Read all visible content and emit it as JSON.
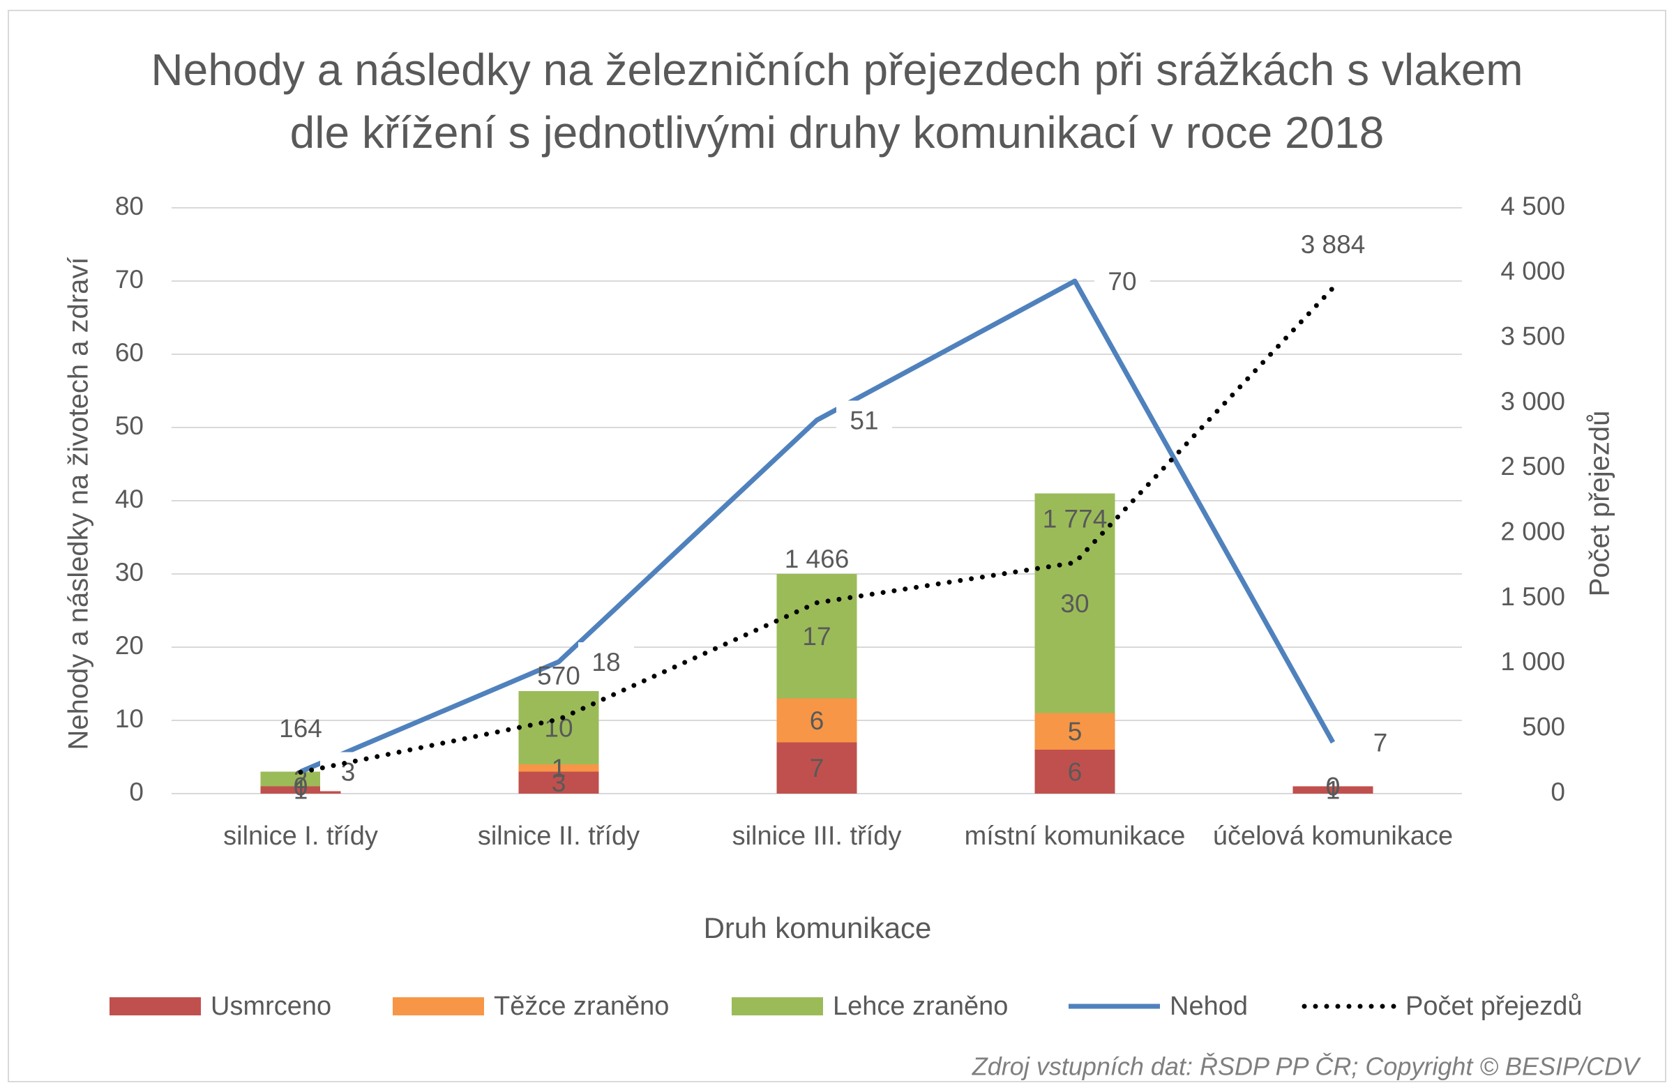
{
  "chart_data": {
    "type": "bar",
    "stacked": true,
    "title": "Nehody a následky na železničních přejezdech při srážkách s vlakem dle křížení s jednotlivými druhy komunikací v roce 2018",
    "x_label": "Druh komunikace",
    "y_label": "Nehody a následky na životech a zdraví",
    "y2_label": "Počet přejezdů",
    "source": "Zdroj vstupních dat: ŘSDP PP ČR; Copyright © BESIP/CDV",
    "categories": [
      "silnice I. třídy",
      "silnice II. třídy",
      "silnice III. třídy",
      "místní komunikace",
      "účelová komunikace"
    ],
    "ylim": [
      0,
      80
    ],
    "yticks": [
      0,
      10,
      20,
      30,
      40,
      50,
      60,
      70,
      80
    ],
    "y2lim": [
      0,
      4500
    ],
    "y2ticks": [
      0,
      500,
      {
        "value": 1000,
        "label": "1 000"
      },
      {
        "value": 1500,
        "label": "1 500"
      },
      {
        "value": 2000,
        "label": "2 000"
      },
      {
        "value": 2500,
        "label": "2 500"
      },
      {
        "value": 3000,
        "label": "3 000"
      },
      {
        "value": 3500,
        "label": "3 500"
      },
      {
        "value": 4000,
        "label": "4 000"
      },
      {
        "value": 4500,
        "label": "4 500"
      }
    ],
    "grid": true,
    "legend": "bottom",
    "series": [
      {
        "name": "Usmrceno",
        "color": "#c0504d",
        "values": [
          1,
          3,
          7,
          6,
          1
        ]
      },
      {
        "name": "Těžce zraněno",
        "color": "#f79646",
        "values": [
          0,
          1,
          6,
          5,
          0
        ]
      },
      {
        "name": "Lehce zraněno",
        "color": "#9bbb59",
        "values": [
          2,
          10,
          17,
          30,
          0
        ]
      },
      {
        "name": "Nehod",
        "type": "line",
        "color": "#4f81bd",
        "values": [
          3,
          18,
          51,
          70,
          7
        ]
      },
      {
        "name": "Počet přejezdů",
        "type": "line",
        "axis": "y2",
        "line_style": "dotted",
        "color": "#000000",
        "values": [
          164,
          570,
          1466,
          1774,
          3884
        ],
        "value_labels": [
          "164",
          "570",
          "1 466",
          "1 774",
          "3 884"
        ]
      }
    ]
  }
}
